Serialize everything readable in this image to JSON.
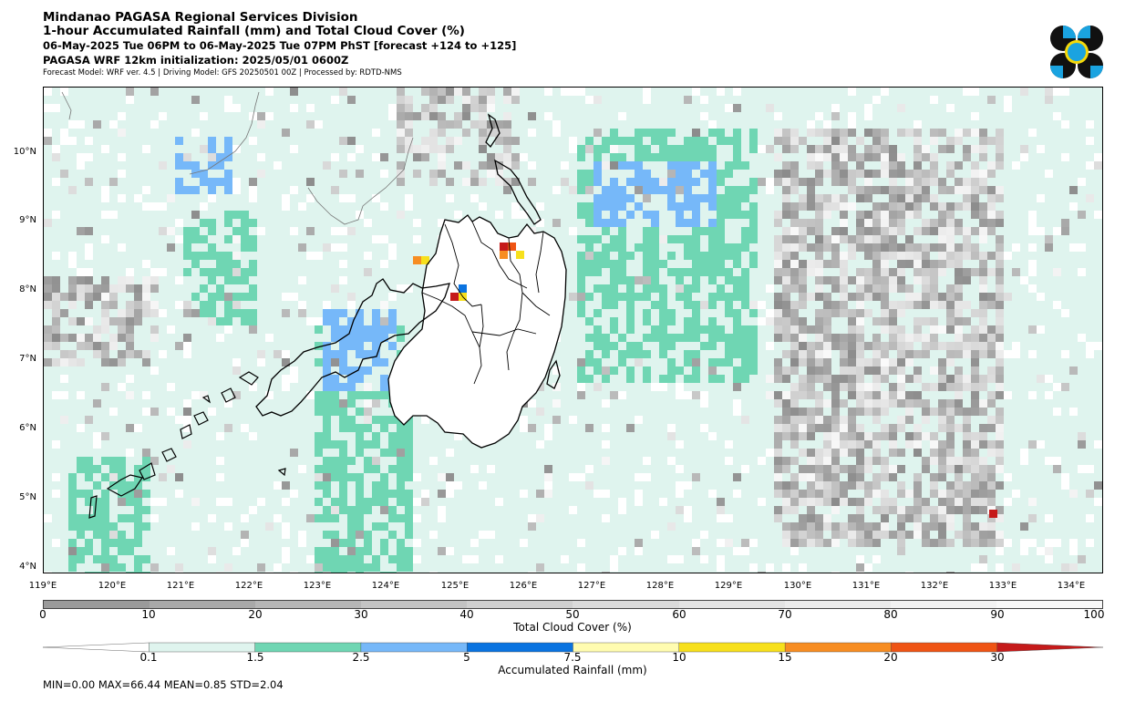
{
  "header": {
    "line1": "Mindanao PAGASA Regional Services Division",
    "line2": "1-hour Accumulated Rainfall (mm) and Total Cloud Cover (%)",
    "line3": "06-May-2025 Tue 06PM to 06-May-2025 Tue 07PM PhST [forecast +124 to +125]",
    "line4": "PAGASA WRF 12km initialization: 2025/05/01 0600Z",
    "line5": "Forecast Model: WRF ver. 4.5 | Driving Model: GFS 20250501 00Z | Processed by: RDTD-NMS"
  },
  "map": {
    "lat_labels": [
      "10°N",
      "9°N",
      "8°N",
      "7°N",
      "6°N",
      "5°N",
      "4°N"
    ],
    "lon_labels": [
      "119°E",
      "120°E",
      "121°E",
      "122°E",
      "123°E",
      "124°E",
      "125°E",
      "126°E",
      "127°E",
      "128°E",
      "129°E",
      "130°E",
      "131°E",
      "132°E",
      "133°E",
      "134°E"
    ]
  },
  "cloud_colorbar": {
    "ticks": [
      "0",
      "10",
      "20",
      "30",
      "40",
      "50",
      "60",
      "70",
      "80",
      "90",
      "100"
    ],
    "label": "Total Cloud Cover (%)",
    "colors": [
      "#9a9a9a",
      "#a9a9a9",
      "#b6b6b6",
      "#c3c3c3",
      "#cfcfcf",
      "#dadada",
      "#e3e3e3",
      "#ebebeb",
      "#f2f2f2",
      "#f8f8f8"
    ]
  },
  "rain_colorbar": {
    "ticks": [
      "0.1",
      "1.5",
      "2.5",
      "5",
      "7.5",
      "10",
      "15",
      "20",
      "30"
    ],
    "label": "Accumulated Rainfall (mm)",
    "colors": [
      "#ffffff",
      "#dff4ee",
      "#6fd6b3",
      "#76b8f9",
      "#0a73e0",
      "#fffcb0",
      "#f7e01c",
      "#f78d22",
      "#ef5414",
      "#c51a1a"
    ]
  },
  "stats": "MIN=0.00   MAX=66.44   MEAN=0.85   STD=2.04"
}
